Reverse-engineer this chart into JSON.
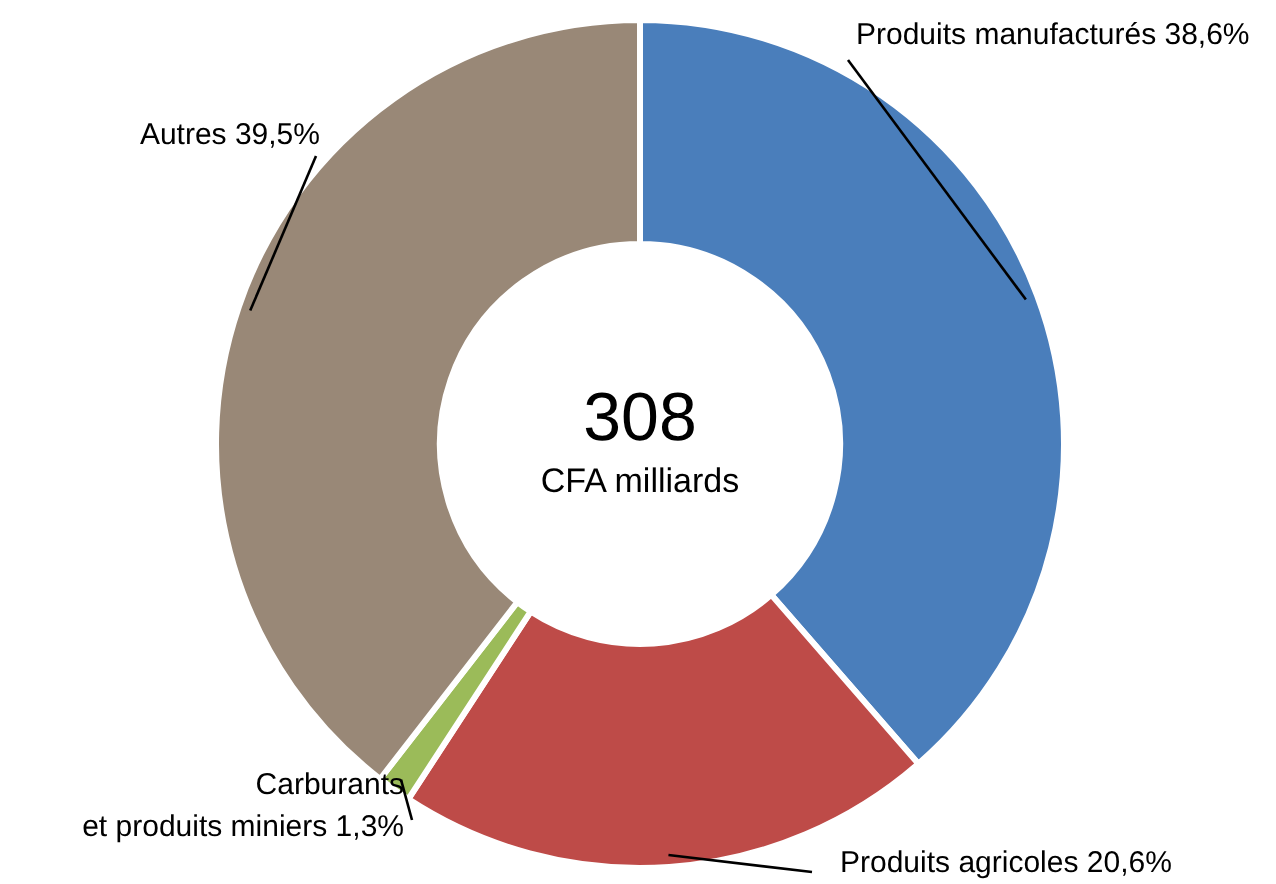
{
  "chart_data": {
    "type": "donut",
    "categories": [
      "Produits manufacturés",
      "Produits agricoles",
      "Carburants et produits miniers",
      "Autres"
    ],
    "values": [
      38.6,
      20.6,
      1.3,
      39.5
    ],
    "value_labels": [
      "38,6%",
      "20,6%",
      "1,3%",
      "39,5%"
    ],
    "colors": [
      "#4a7ebb",
      "#be4b48",
      "#9bbb59",
      "#998877"
    ],
    "annotations": [
      "308",
      "CFA milliards"
    ]
  }
}
